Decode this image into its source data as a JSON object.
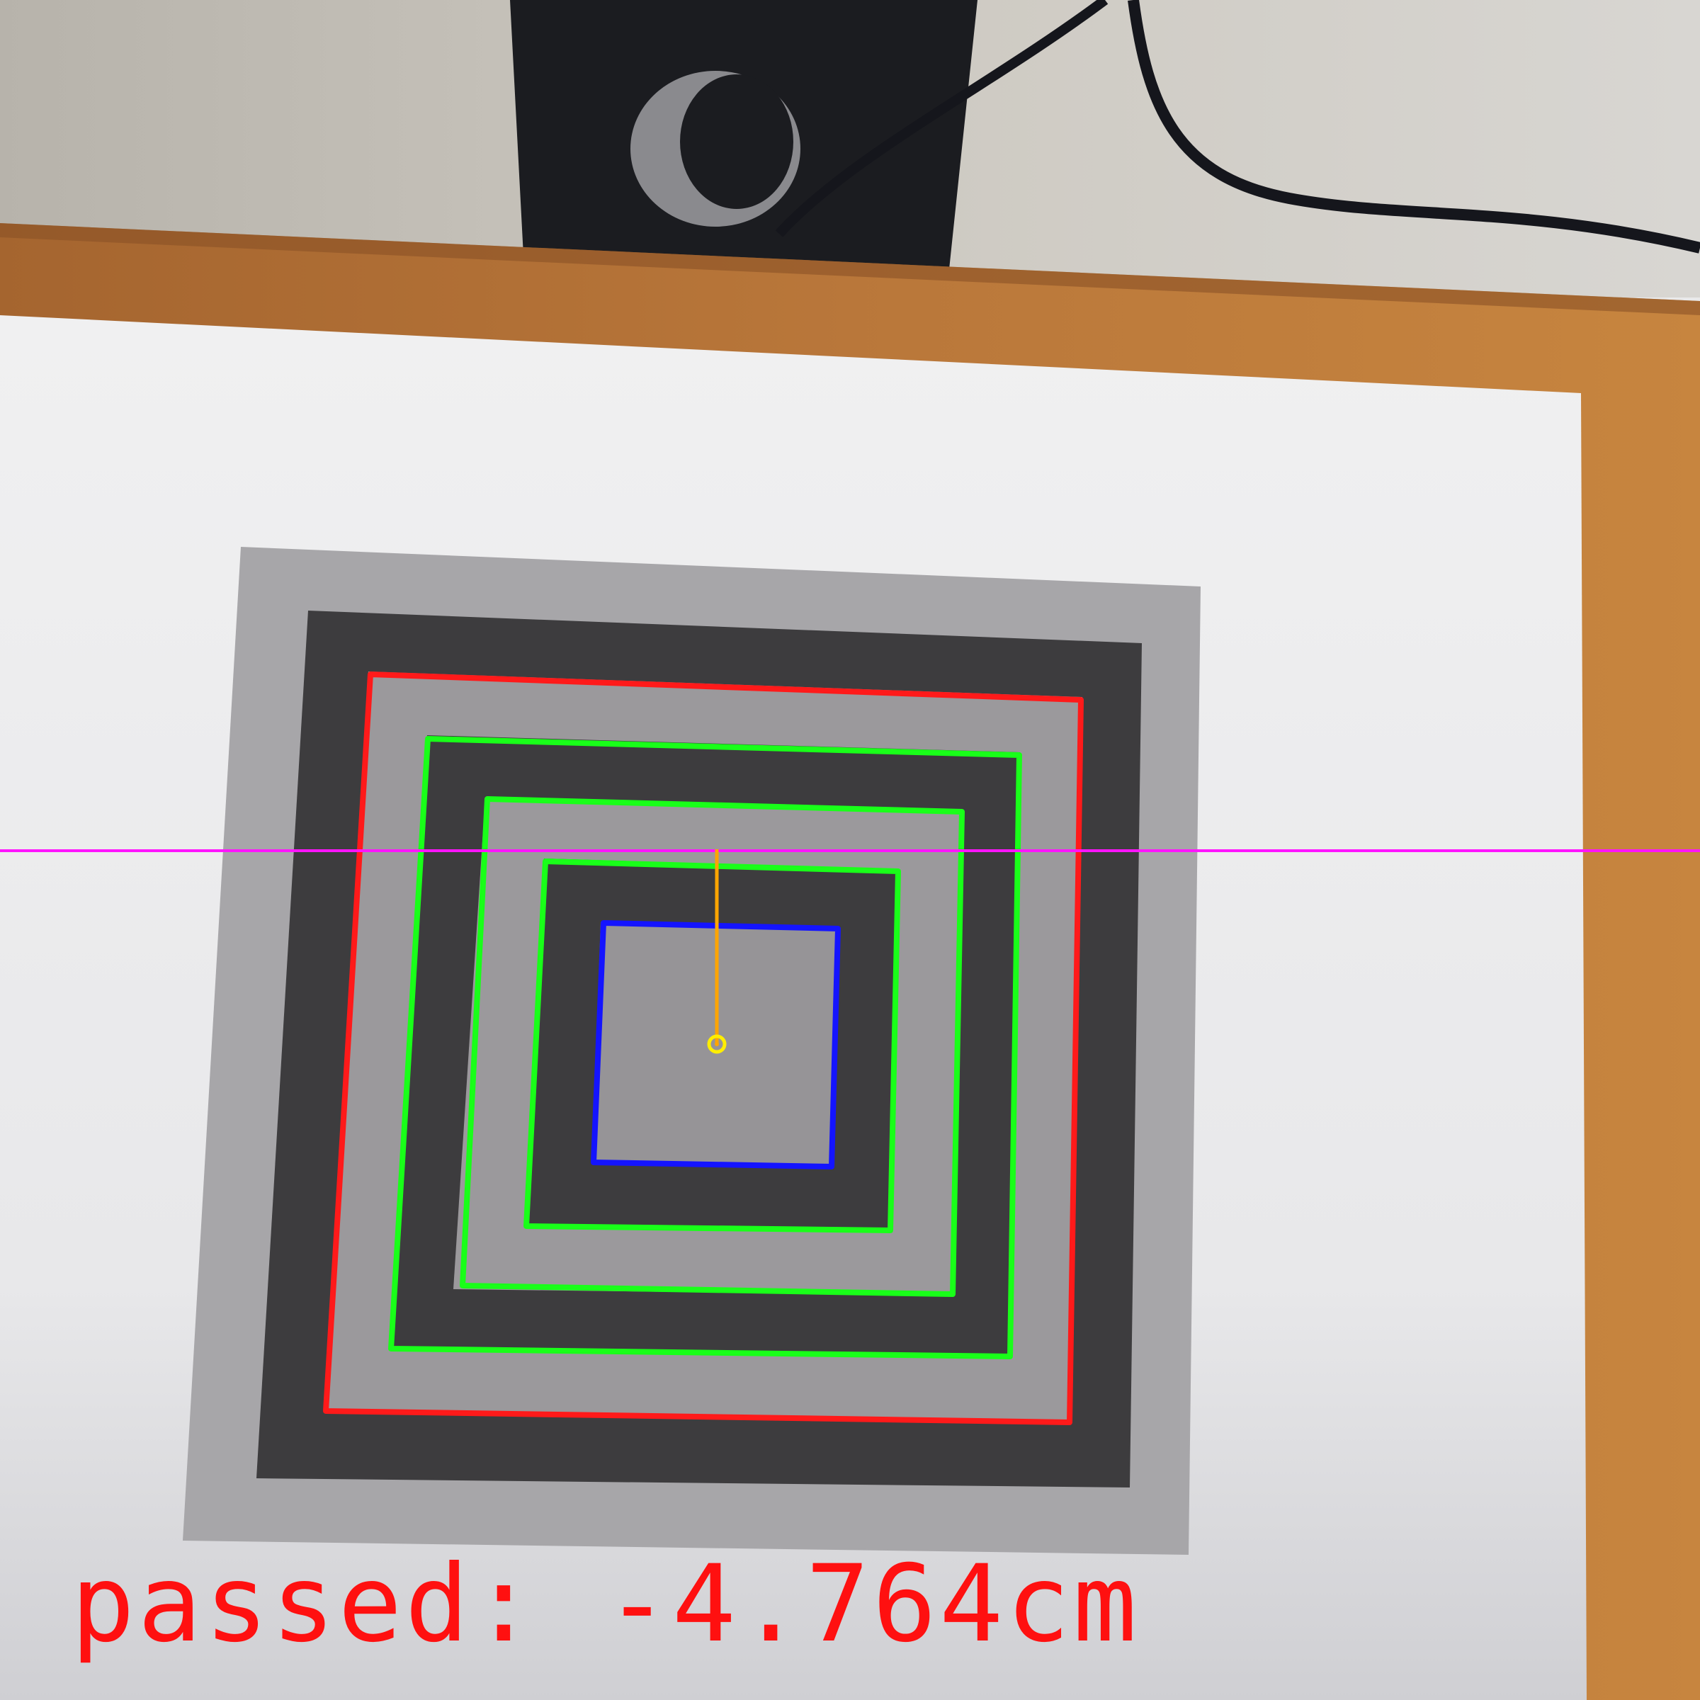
{
  "result": {
    "label": "passed:",
    "value": "-4.764cm"
  },
  "colors": {
    "outer_contour": "#ff1a1a",
    "middle_contours": "#19ff19",
    "inner_contour": "#1414ff",
    "reference_line": "#ff14ff",
    "offset_line": "#ffa500",
    "center_marker": "#ffee00",
    "result_text": "#ff1010"
  }
}
